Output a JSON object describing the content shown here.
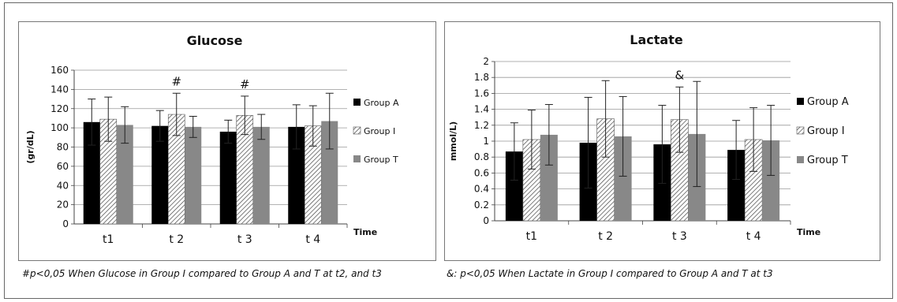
{
  "colors": {
    "group_a": "#000000",
    "group_i_stroke": "#444444",
    "group_t": "#888888",
    "grid": "#999999",
    "frame": "#666666"
  },
  "captions": {
    "left": "#p<0,05 When Glucose in Group I compared to Group A and T at t2, and t3",
    "right": "&: p<0,05 When Lactate in Group I compared to Group A and T at t3"
  },
  "chart_data": [
    {
      "type": "bar",
      "title": "Glucose",
      "ylabel": "(gr/dL)",
      "xlabel": "Time",
      "categories": [
        "t1",
        "t 2",
        "t 3",
        "t 4"
      ],
      "ylim": [
        0,
        160
      ],
      "yticks": [
        "0",
        "20",
        "40",
        "60",
        "80",
        "100",
        "120",
        "140",
        "160"
      ],
      "grid": true,
      "legend_position": "right",
      "series": [
        {
          "name": "Group A",
          "pattern": "solid-black",
          "values": [
            106,
            102,
            96,
            101
          ],
          "error": [
            24,
            16,
            12,
            23
          ]
        },
        {
          "name": "Group I",
          "pattern": "hatched",
          "values": [
            109,
            114,
            113,
            102
          ],
          "error": [
            23,
            22,
            20,
            21
          ]
        },
        {
          "name": "Group T",
          "pattern": "solid-gray",
          "values": [
            103,
            101,
            101,
            107
          ],
          "error": [
            19,
            11,
            13,
            29
          ]
        }
      ],
      "annotations": [
        {
          "text": "#",
          "category": "t 2",
          "series": "Group I"
        },
        {
          "text": "#",
          "category": "t 3",
          "series": "Group I"
        }
      ]
    },
    {
      "type": "bar",
      "title": "Lactate",
      "ylabel": "mmol/L)",
      "xlabel": "Time",
      "categories": [
        "t1",
        "t 2",
        "t 3",
        "t 4"
      ],
      "ylim": [
        0,
        2
      ],
      "yticks": [
        "0",
        "0.2",
        "0.4",
        "0.6",
        "0.8",
        "1",
        "1.2",
        "1.4",
        "1.6",
        "1.8",
        "2"
      ],
      "grid": true,
      "legend_position": "right",
      "series": [
        {
          "name": "Group A",
          "pattern": "solid-black",
          "values": [
            0.87,
            0.98,
            0.96,
            0.89
          ],
          "error": [
            0.36,
            0.57,
            0.49,
            0.37
          ]
        },
        {
          "name": "Group I",
          "pattern": "hatched",
          "values": [
            1.02,
            1.28,
            1.27,
            1.02
          ],
          "error": [
            0.37,
            0.48,
            0.41,
            0.4
          ]
        },
        {
          "name": "Group T",
          "pattern": "solid-gray",
          "values": [
            1.08,
            1.06,
            1.09,
            1.01
          ],
          "error": [
            0.38,
            0.5,
            0.66,
            0.44
          ]
        }
      ],
      "annotations": [
        {
          "text": "&",
          "category": "t 3",
          "series": "Group I"
        }
      ]
    }
  ]
}
